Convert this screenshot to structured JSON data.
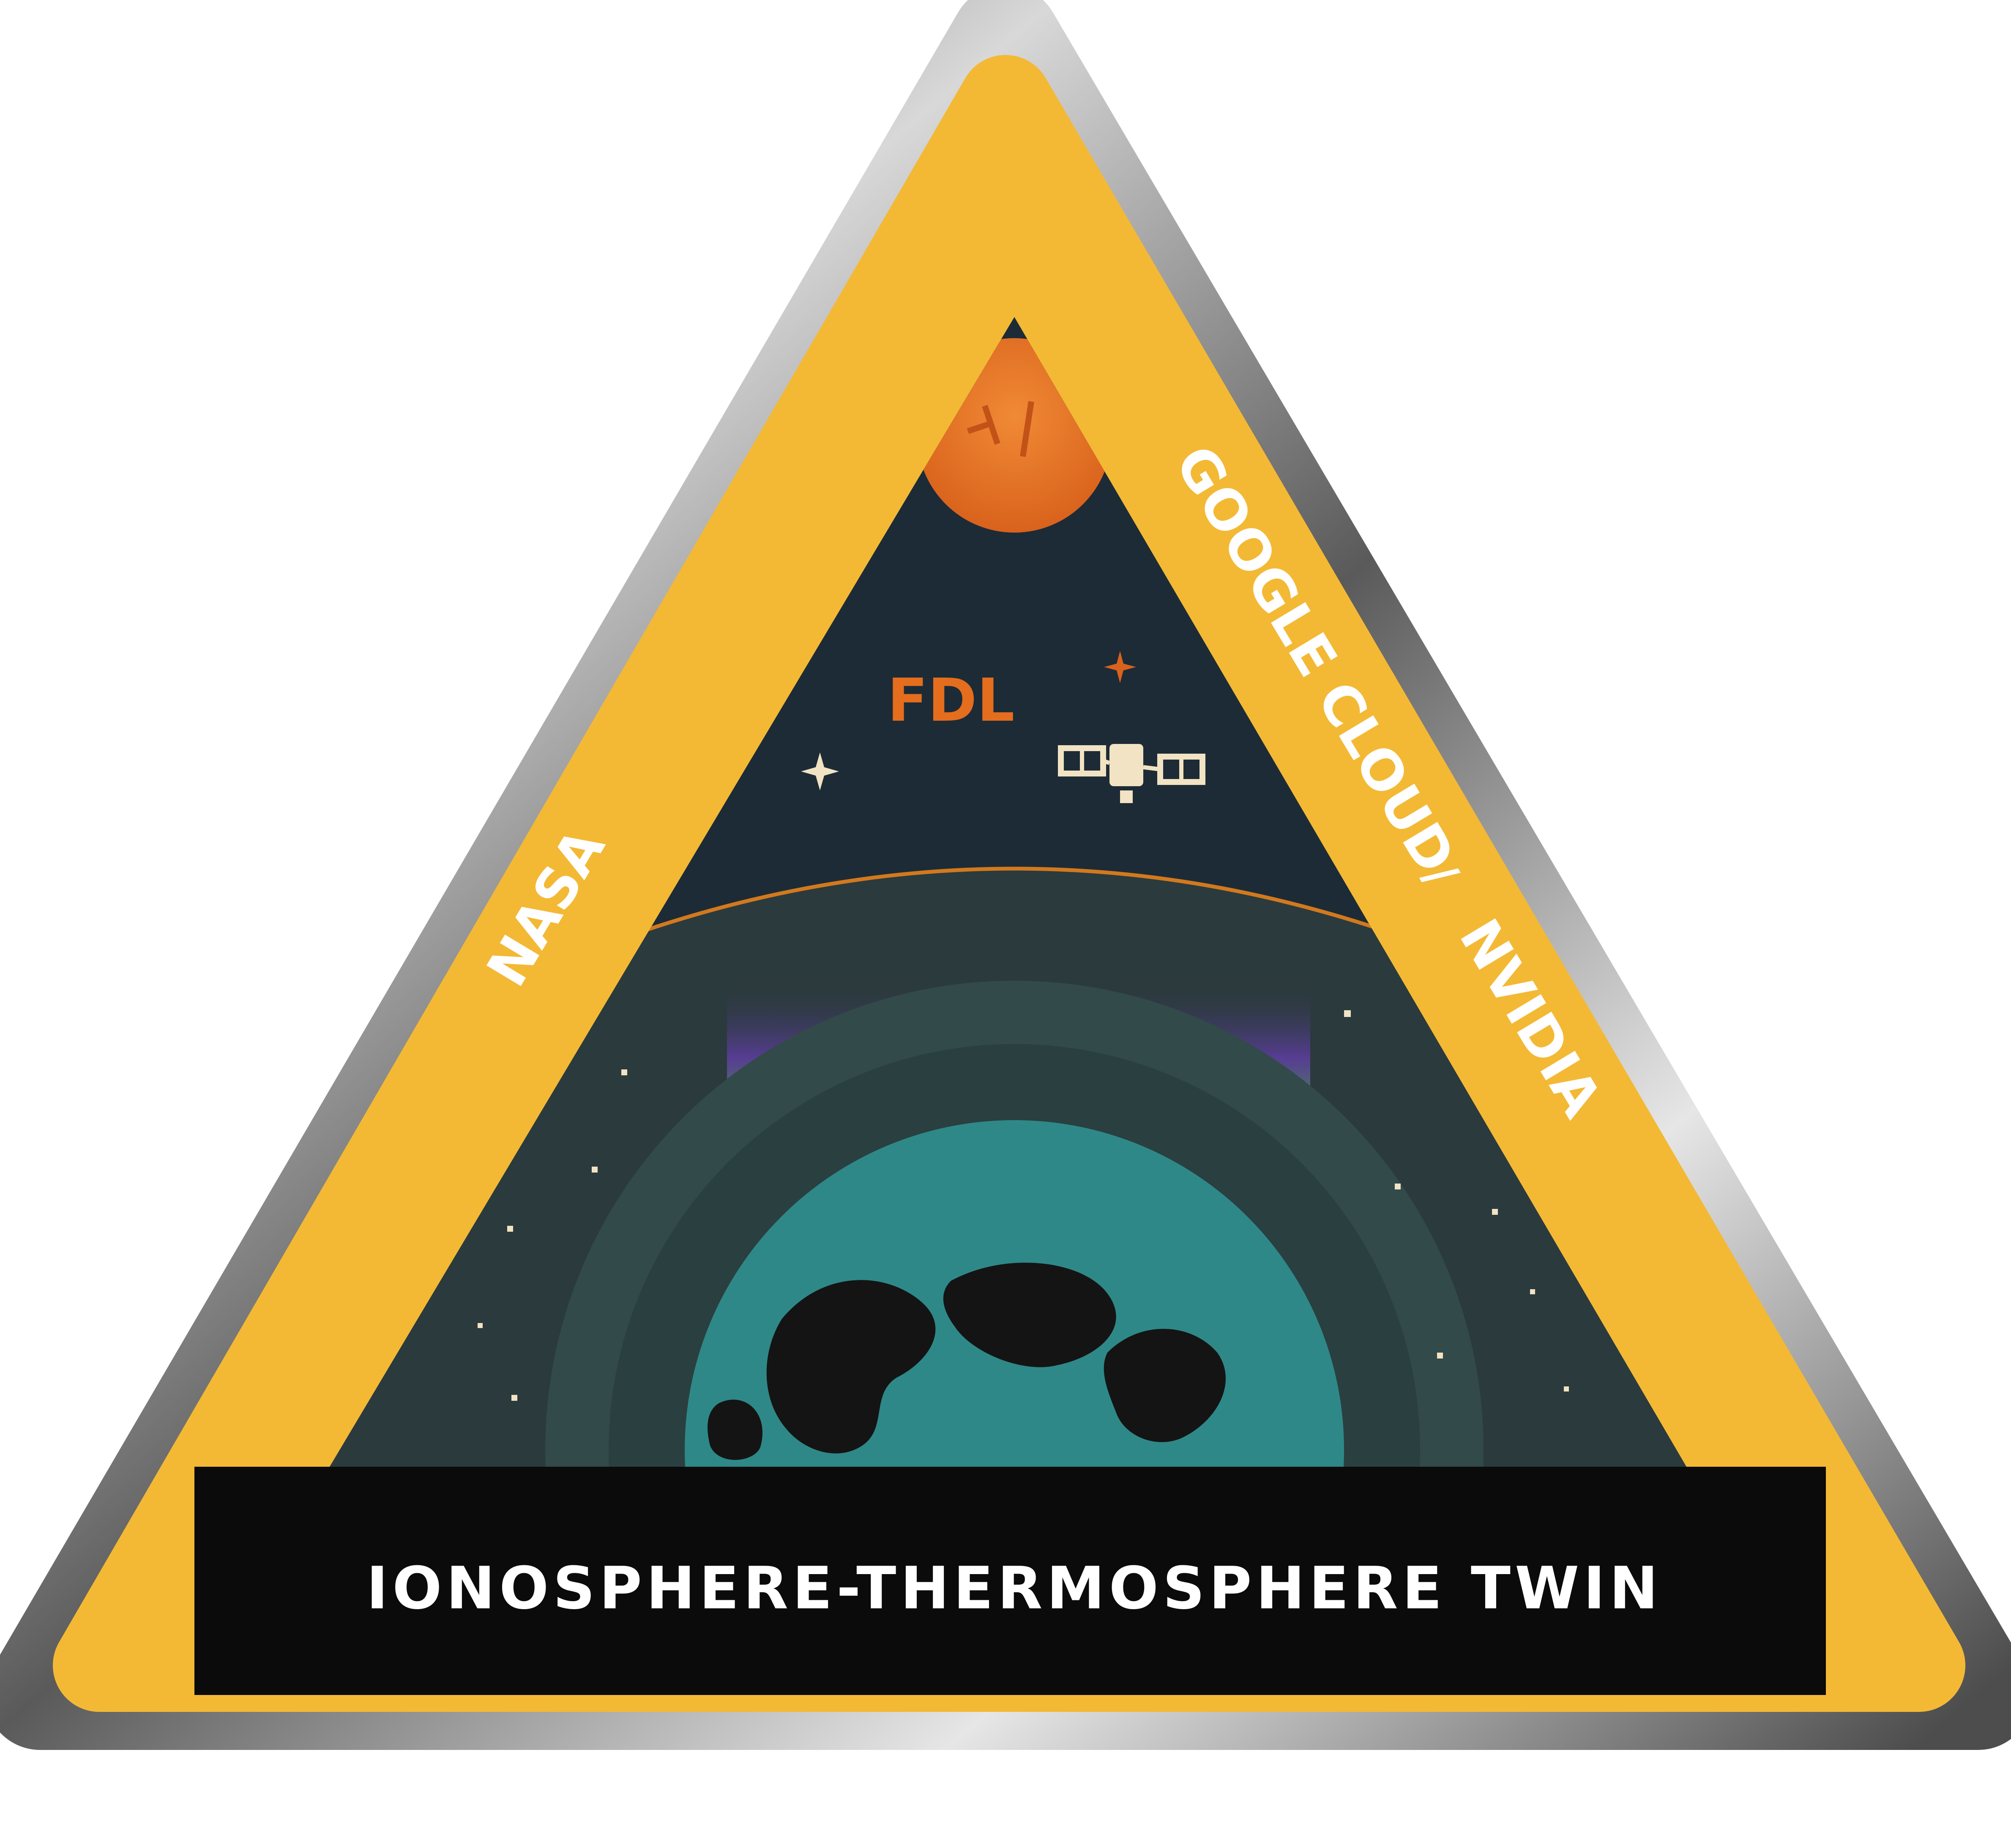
{
  "patch": {
    "partners": {
      "left_band": "NASA",
      "right_band_1": "GOOGLE CLOUD",
      "separator": "/",
      "right_band_2": "NVIDIA"
    },
    "center_label": "FDL",
    "banner_title": "IONOSPHERE-THERMOSPHERE TWIN"
  },
  "colors": {
    "band_yellow": "#F3B935",
    "metal_rim": "#8a8a8a",
    "sky": "#1d2b36",
    "sun": "#E9782A",
    "fdl_orange": "#E46D1E",
    "atmosphere": "#2b3a3d",
    "earth_ocean": "#2f8888",
    "earth_land": "#141414",
    "aurora_green": "#56d62a",
    "aurora_purple": "#8a3ed8",
    "banner_black": "#0b0b0b",
    "text_white": "#ffffff"
  },
  "icons": [
    "sun-icon",
    "satellite-icon",
    "star-icon",
    "earth-icon",
    "aurora-icon"
  ]
}
